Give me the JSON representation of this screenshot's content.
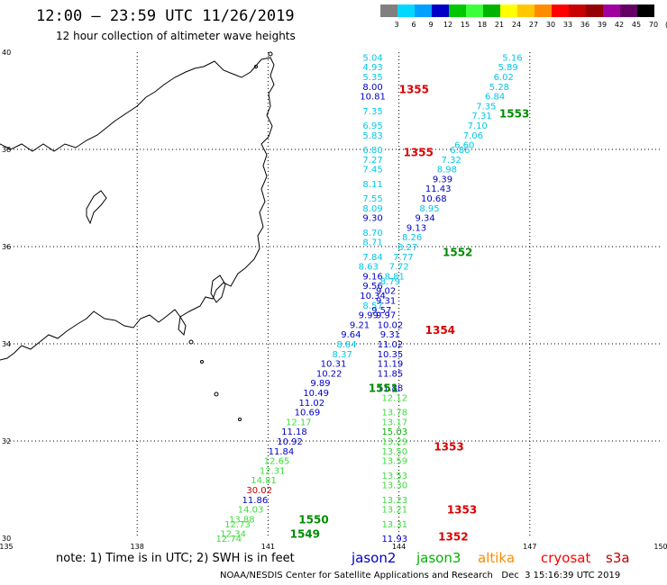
{
  "title": "12:00 – 23:59 UTC 11/26/2019",
  "subtitle": "12 hour collection of altimeter wave heights",
  "note": "note:  1) Time is in UTC;  2) SWH is in feet",
  "footer": "NOAA/NESDIS Center for Satellite Applications and Research   Dec  3 15:16:39 UTC 2019",
  "color_scale": {
    "labels": [
      "3",
      "6",
      "9",
      "12",
      "15",
      "18",
      "21",
      "24",
      "27",
      "30",
      "33",
      "36",
      "39",
      "42",
      "45",
      "70",
      "(ft)"
    ],
    "colors": [
      "#808080",
      "#00d8ff",
      "#00a0ff",
      "#0000c8",
      "#00c800",
      "#3cff3c",
      "#00b400",
      "#ffff00",
      "#ffc800",
      "#ff8c00",
      "#ff0000",
      "#c80000",
      "#960000",
      "#a000a0",
      "#640064",
      "#000000"
    ]
  },
  "lat_labels": [
    {
      "lat": 40,
      "text": "40"
    },
    {
      "lat": 38,
      "text": "38"
    },
    {
      "lat": 36,
      "text": "36"
    },
    {
      "lat": 34,
      "text": "34"
    },
    {
      "lat": 32,
      "text": "32"
    },
    {
      "lat": 30,
      "text": "30"
    }
  ],
  "lon_labels": [
    {
      "lon": 135,
      "text": "135"
    },
    {
      "lon": 138,
      "text": "138"
    },
    {
      "lon": 141,
      "text": "141"
    },
    {
      "lon": 144,
      "text": "144"
    },
    {
      "lon": 147,
      "text": "147"
    },
    {
      "lon": 150,
      "text": "150"
    }
  ],
  "satellites": [
    {
      "name": "jason2",
      "color": "#0000c8"
    },
    {
      "name": "jason3",
      "color": "#00b400"
    },
    {
      "name": "altika",
      "color": "#ff8c00"
    },
    {
      "name": "cryosat",
      "color": "#ff0000"
    },
    {
      "name": "s3a",
      "color": "#c80000"
    }
  ],
  "wave_readings": [
    {
      "text": "5.04",
      "color": "#00c8e6",
      "lon": 143.4,
      "lat": 39.9
    },
    {
      "text": "4.93",
      "color": "#00c8e6",
      "lon": 143.4,
      "lat": 39.7
    },
    {
      "text": "5.35",
      "color": "#00c8e6",
      "lon": 143.4,
      "lat": 39.5
    },
    {
      "text": "8.00",
      "color": "#0000c8",
      "lon": 143.4,
      "lat": 39.3
    },
    {
      "text": "10.81",
      "color": "#0000c8",
      "lon": 143.4,
      "lat": 39.1
    },
    {
      "text": "7.35",
      "color": "#00c8e6",
      "lon": 143.4,
      "lat": 38.8
    },
    {
      "text": "6.95",
      "color": "#00c8e6",
      "lon": 143.4,
      "lat": 38.5
    },
    {
      "text": "5.83",
      "color": "#00c8e6",
      "lon": 143.4,
      "lat": 38.3
    },
    {
      "text": "6.80",
      "color": "#00c8e6",
      "lon": 143.4,
      "lat": 38.0
    },
    {
      "text": "7.27",
      "color": "#00c8e6",
      "lon": 143.4,
      "lat": 37.8
    },
    {
      "text": "7.45",
      "color": "#00c8e6",
      "lon": 143.4,
      "lat": 37.6
    },
    {
      "text": "8.11",
      "color": "#00c8e6",
      "lon": 143.4,
      "lat": 37.3
    },
    {
      "text": "7.55",
      "color": "#00c8e6",
      "lon": 143.4,
      "lat": 37.0
    },
    {
      "text": "8.09",
      "color": "#00c8e6",
      "lon": 143.4,
      "lat": 36.8
    },
    {
      "text": "9.30",
      "color": "#0000c8",
      "lon": 143.4,
      "lat": 36.6
    },
    {
      "text": "8.70",
      "color": "#00c8e6",
      "lon": 143.4,
      "lat": 36.3
    },
    {
      "text": "8.71",
      "color": "#00c8e6",
      "lon": 143.4,
      "lat": 36.1
    },
    {
      "text": "7.84",
      "color": "#00c8e6",
      "lon": 143.4,
      "lat": 35.8
    },
    {
      "text": "8.63",
      "color": "#00c8e6",
      "lon": 143.3,
      "lat": 35.6
    },
    {
      "text": "9.16",
      "color": "#0000c8",
      "lon": 143.4,
      "lat": 35.4
    },
    {
      "text": "9.56",
      "color": "#0000c8",
      "lon": 143.4,
      "lat": 35.2
    },
    {
      "text": "10.34",
      "color": "#0000c8",
      "lon": 143.4,
      "lat": 35.0
    },
    {
      "text": "8.57",
      "color": "#00c8e6",
      "lon": 143.4,
      "lat": 34.8
    },
    {
      "text": "9.99",
      "color": "#0000c8",
      "lon": 143.3,
      "lat": 34.6
    },
    {
      "text": "9.21",
      "color": "#0000c8",
      "lon": 143.1,
      "lat": 34.4
    },
    {
      "text": "9.64",
      "color": "#0000c8",
      "lon": 142.9,
      "lat": 34.2
    },
    {
      "text": "8.84",
      "color": "#00c8e6",
      "lon": 142.8,
      "lat": 34.0
    },
    {
      "text": "8.37",
      "color": "#00c8e6",
      "lon": 142.7,
      "lat": 33.8
    },
    {
      "text": "10.31",
      "color": "#0000c8",
      "lon": 142.5,
      "lat": 33.6
    },
    {
      "text": "10.22",
      "color": "#0000c8",
      "lon": 142.4,
      "lat": 33.4
    },
    {
      "text": "9.89",
      "color": "#0000c8",
      "lon": 142.2,
      "lat": 33.2
    },
    {
      "text": "10.49",
      "color": "#0000c8",
      "lon": 142.1,
      "lat": 33.0
    },
    {
      "text": "11.02",
      "color": "#0000c8",
      "lon": 142.0,
      "lat": 32.8
    },
    {
      "text": "10.69",
      "color": "#0000c8",
      "lon": 141.9,
      "lat": 32.6
    },
    {
      "text": "12.17",
      "color": "#3cdc3c",
      "lon": 141.7,
      "lat": 32.4
    },
    {
      "text": "11.18",
      "color": "#0000c8",
      "lon": 141.6,
      "lat": 32.2
    },
    {
      "text": "10.92",
      "color": "#0000c8",
      "lon": 141.5,
      "lat": 32.0
    },
    {
      "text": "11.84",
      "color": "#0000c8",
      "lon": 141.3,
      "lat": 31.8
    },
    {
      "text": "12.65",
      "color": "#3cdc3c",
      "lon": 141.2,
      "lat": 31.6
    },
    {
      "text": "12.31",
      "color": "#3cdc3c",
      "lon": 141.1,
      "lat": 31.4
    },
    {
      "text": "14.81",
      "color": "#3cdc3c",
      "lon": 140.9,
      "lat": 31.2
    },
    {
      "text": "30.02",
      "color": "#c80000",
      "lon": 140.8,
      "lat": 31.0
    },
    {
      "text": "11.86",
      "color": "#0000c8",
      "lon": 140.7,
      "lat": 30.8
    },
    {
      "text": "14.03",
      "color": "#3cdc3c",
      "lon": 140.6,
      "lat": 30.6
    },
    {
      "text": "13.88",
      "color": "#3cdc3c",
      "lon": 140.4,
      "lat": 30.4
    },
    {
      "text": "12.73",
      "color": "#3cdc3c",
      "lon": 140.3,
      "lat": 30.3
    },
    {
      "text": "12.34",
      "color": "#3cdc3c",
      "lon": 140.2,
      "lat": 30.1
    },
    {
      "text": "12.74",
      "color": "#3cdc3c",
      "lon": 140.1,
      "lat": 30.0
    },
    {
      "text": "5.16",
      "color": "#00c8e6",
      "lon": 146.6,
      "lat": 39.9
    },
    {
      "text": "5.89",
      "color": "#00c8e6",
      "lon": 146.5,
      "lat": 39.7
    },
    {
      "text": "6.02",
      "color": "#00c8e6",
      "lon": 146.4,
      "lat": 39.5
    },
    {
      "text": "5.28",
      "color": "#00c8e6",
      "lon": 146.3,
      "lat": 39.3
    },
    {
      "text": "6.84",
      "color": "#00c8e6",
      "lon": 146.2,
      "lat": 39.1
    },
    {
      "text": "7.35",
      "color": "#00c8e6",
      "lon": 146.0,
      "lat": 38.9
    },
    {
      "text": "7.31",
      "color": "#00c8e6",
      "lon": 145.9,
      "lat": 38.7
    },
    {
      "text": "7.10",
      "color": "#00c8e6",
      "lon": 145.8,
      "lat": 38.5
    },
    {
      "text": "7.06",
      "color": "#00c8e6",
      "lon": 145.7,
      "lat": 38.3
    },
    {
      "text": "6.60",
      "color": "#00c8e6",
      "lon": 145.5,
      "lat": 38.1
    },
    {
      "text": "6.86",
      "color": "#00c8e6",
      "lon": 145.4,
      "lat": 38.0
    },
    {
      "text": "7.32",
      "color": "#00c8e6",
      "lon": 145.2,
      "lat": 37.8
    },
    {
      "text": "8.98",
      "color": "#00c8e6",
      "lon": 145.1,
      "lat": 37.6
    },
    {
      "text": "9.39",
      "color": "#0000c8",
      "lon": 145.0,
      "lat": 37.4
    },
    {
      "text": "11.43",
      "color": "#0000c8",
      "lon": 144.9,
      "lat": 37.2
    },
    {
      "text": "10.68",
      "color": "#0000c8",
      "lon": 144.8,
      "lat": 37.0
    },
    {
      "text": "8.95",
      "color": "#00c8e6",
      "lon": 144.7,
      "lat": 36.8
    },
    {
      "text": "9.34",
      "color": "#0000c8",
      "lon": 144.6,
      "lat": 36.6
    },
    {
      "text": "9.13",
      "color": "#0000c8",
      "lon": 144.4,
      "lat": 36.4
    },
    {
      "text": "8.26",
      "color": "#00c8e6",
      "lon": 144.3,
      "lat": 36.2
    },
    {
      "text": "8.27",
      "color": "#00c8e6",
      "lon": 144.2,
      "lat": 36.0
    },
    {
      "text": "7.77",
      "color": "#00c8e6",
      "lon": 144.1,
      "lat": 35.8
    },
    {
      "text": "7.72",
      "color": "#00c8e6",
      "lon": 144.0,
      "lat": 35.6
    },
    {
      "text": "8.81",
      "color": "#00c8e6",
      "lon": 143.9,
      "lat": 35.4
    },
    {
      "text": "8.79",
      "color": "#00c8e6",
      "lon": 143.8,
      "lat": 35.3
    },
    {
      "text": "9.02",
      "color": "#0000c8",
      "lon": 143.7,
      "lat": 35.1
    },
    {
      "text": "9.31",
      "color": "#0000c8",
      "lon": 143.7,
      "lat": 34.9
    },
    {
      "text": "9.57",
      "color": "#0000c8",
      "lon": 143.6,
      "lat": 34.7
    },
    {
      "text": "9.97",
      "color": "#0000c8",
      "lon": 143.7,
      "lat": 34.6
    },
    {
      "text": "10.02",
      "color": "#0000c8",
      "lon": 143.8,
      "lat": 34.4
    },
    {
      "text": "9.31",
      "color": "#0000c8",
      "lon": 143.8,
      "lat": 34.2
    },
    {
      "text": "11.02",
      "color": "#0000c8",
      "lon": 143.8,
      "lat": 34.0
    },
    {
      "text": "10.35",
      "color": "#0000c8",
      "lon": 143.8,
      "lat": 33.8
    },
    {
      "text": "11.19",
      "color": "#0000c8",
      "lon": 143.8,
      "lat": 33.6
    },
    {
      "text": "11.85",
      "color": "#0000c8",
      "lon": 143.8,
      "lat": 33.4
    },
    {
      "text": "11.88",
      "color": "#0000c8",
      "lon": 143.8,
      "lat": 33.1
    },
    {
      "text": "12.12",
      "color": "#3cdc3c",
      "lon": 143.9,
      "lat": 32.9
    },
    {
      "text": "13.78",
      "color": "#3cdc3c",
      "lon": 143.9,
      "lat": 32.6
    },
    {
      "text": "13.17",
      "color": "#3cdc3c",
      "lon": 143.9,
      "lat": 32.4
    },
    {
      "text": "15.03",
      "color": "#00b400",
      "lon": 143.9,
      "lat": 32.2
    },
    {
      "text": "13.29",
      "color": "#3cdc3c",
      "lon": 143.9,
      "lat": 32.0
    },
    {
      "text": "13.50",
      "color": "#3cdc3c",
      "lon": 143.9,
      "lat": 31.8
    },
    {
      "text": "13.59",
      "color": "#3cdc3c",
      "lon": 143.9,
      "lat": 31.6
    },
    {
      "text": "13.53",
      "color": "#3cdc3c",
      "lon": 143.9,
      "lat": 31.3
    },
    {
      "text": "13.30",
      "color": "#3cdc3c",
      "lon": 143.9,
      "lat": 31.1
    },
    {
      "text": "13.23",
      "color": "#3cdc3c",
      "lon": 143.9,
      "lat": 30.8
    },
    {
      "text": "13.21",
      "color": "#3cdc3c",
      "lon": 143.9,
      "lat": 30.6
    },
    {
      "text": "13.31",
      "color": "#3cdc3c",
      "lon": 143.9,
      "lat": 30.3
    },
    {
      "text": "11.93",
      "color": "#0000c8",
      "lon": 143.9,
      "lat": 30.0
    }
  ],
  "time_labels": [
    {
      "text": "1355",
      "color": "#dc0000",
      "lon": 144.0,
      "lat": 39.25
    },
    {
      "text": "1553",
      "color": "#008c00",
      "lon": 146.3,
      "lat": 38.75
    },
    {
      "text": "1355",
      "color": "#dc0000",
      "lon": 144.1,
      "lat": 37.95
    },
    {
      "text": "1552",
      "color": "#008c00",
      "lon": 145.0,
      "lat": 35.9
    },
    {
      "text": "1354",
      "color": "#dc0000",
      "lon": 144.6,
      "lat": 34.3
    },
    {
      "text": "1551",
      "color": "#008c00",
      "lon": 143.3,
      "lat": 33.1
    },
    {
      "text": "1353",
      "color": "#dc0000",
      "lon": 144.8,
      "lat": 31.9
    },
    {
      "text": "1550",
      "color": "#008c00",
      "lon": 141.7,
      "lat": 30.4
    },
    {
      "text": "1353",
      "color": "#dc0000",
      "lon": 145.1,
      "lat": 30.6
    },
    {
      "text": "1549",
      "color": "#008c00",
      "lon": 141.5,
      "lat": 30.1
    },
    {
      "text": "1352",
      "color": "#dc0000",
      "lon": 144.9,
      "lat": 30.05
    }
  ]
}
